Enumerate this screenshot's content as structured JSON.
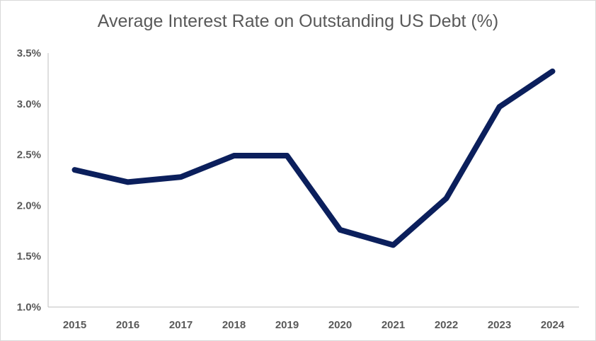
{
  "chart_data": {
    "type": "line",
    "title": "Average Interest Rate on Outstanding US Debt (%)",
    "xlabel": "",
    "ylabel": "",
    "categories": [
      "2015",
      "2016",
      "2017",
      "2018",
      "2019",
      "2020",
      "2021",
      "2022",
      "2023",
      "2024"
    ],
    "series": [
      {
        "values": [
          2.35,
          2.23,
          2.28,
          2.49,
          2.49,
          1.76,
          1.61,
          2.07,
          2.97,
          3.32
        ],
        "color": "#0b1f5c"
      }
    ],
    "ylim": [
      1.0,
      3.5
    ],
    "yticks": [
      "1.0%",
      "1.5%",
      "2.0%",
      "2.5%",
      "3.0%",
      "3.5%"
    ],
    "ytick_values": [
      1.0,
      1.5,
      2.0,
      2.5,
      3.0,
      3.5
    ],
    "grid": false,
    "legend": "none"
  }
}
